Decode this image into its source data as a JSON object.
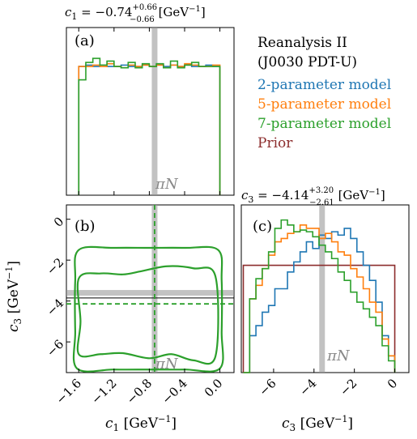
{
  "colors": {
    "2p": "#1f77b4",
    "5p": "#ff7f0e",
    "7p": "#2ca02c",
    "prior": "#8c2d2d",
    "band": "#9a9a9a"
  },
  "panels": {
    "a": "(a)",
    "b": "(b)",
    "c": "(c)"
  },
  "titles": {
    "c1_main": "c",
    "c1_sub": "1",
    "c1_value": " = −0.74",
    "c1_plus": "+0.66",
    "c1_minus": "−0.66",
    "c1_unit": " [GeV",
    "c1_unit_exp": "−1",
    "c1_unit_end": "]",
    "c3_main": "c",
    "c3_sub": "3",
    "c3_value": " = −4.14",
    "c3_plus": "+3.20",
    "c3_minus": "−2.61",
    "c3_unit": " [GeV",
    "c3_unit_exp": "−1",
    "c3_unit_end": "]"
  },
  "legend": {
    "header1": "Reanalysis II",
    "header2": "(J0030 PDT-U)",
    "items": [
      {
        "label": "2-parameter model",
        "color_key": "2p"
      },
      {
        "label": "5-parameter model",
        "color_key": "5p"
      },
      {
        "label": "7-parameter model",
        "color_key": "7p"
      },
      {
        "label": "Prior",
        "color_key": "prior"
      }
    ]
  },
  "annotations": {
    "piN": "πN"
  },
  "axes": {
    "xlabel_c1": "c",
    "xlabel_c1_sub": "1",
    "xlabel_c1_unit": " [GeV",
    "xlabel_c1_exp": "−1",
    "xlabel_c1_end": "]",
    "xlabel_c3": "c",
    "xlabel_c3_sub": "3",
    "xlabel_c3_unit": " [GeV",
    "xlabel_c3_exp": "−1",
    "xlabel_c3_end": "]",
    "ylabel_c3": "c",
    "ylabel_c3_sub": "3",
    "ylabel_c3_unit": " [GeV",
    "ylabel_c3_exp": "−1",
    "ylabel_c3_end": "]"
  },
  "chart_data": [
    {
      "id": "a",
      "type": "area",
      "xlim": [
        -1.74,
        0.16
      ],
      "piN_band": -0.74,
      "series": [
        {
          "key": "2p",
          "edges": [
            -1.6,
            0.0
          ],
          "values": [
            0.96,
            0.97,
            0.96,
            0.97,
            0.96,
            0.96,
            0.97,
            0.96,
            0.96,
            0.97,
            0.96,
            0.97,
            0.96,
            0.97,
            0.96,
            0.97,
            0.96,
            0.96,
            0.97,
            0.96
          ]
        },
        {
          "key": "5p",
          "edges": [
            -1.6,
            0.0
          ],
          "values": [
            0.96,
            0.96,
            0.97,
            0.96,
            0.98,
            0.96,
            0.95,
            0.97,
            0.96,
            0.97,
            0.96,
            0.97,
            0.95,
            0.97,
            0.96,
            0.98,
            0.97,
            0.96,
            0.96,
            0.97
          ]
        },
        {
          "key": "7p",
          "edges": [
            -1.6,
            0.0
          ],
          "values": [
            0.86,
            0.99,
            1.02,
            0.97,
            1.0,
            0.96,
            0.95,
            0.99,
            0.95,
            0.98,
            0.96,
            0.98,
            0.95,
            1.0,
            0.95,
            0.97,
            0.99,
            0.96,
            0.96,
            0.96
          ]
        }
      ]
    },
    {
      "id": "b",
      "type": "line",
      "xlim": [
        -1.74,
        0.16
      ],
      "ylim": [
        -7.5,
        0.7
      ],
      "xticks": [
        -1.6,
        -1.2,
        -0.8,
        -0.4,
        0.0
      ],
      "xtick_labels": [
        "−1.6",
        "−1.2",
        "−0.8",
        "−0.4",
        "0.0"
      ],
      "yticks": [
        0,
        -2,
        -4,
        -6
      ],
      "ytick_labels": [
        "0",
        "−2",
        "−4",
        "−6"
      ],
      "piN_c1": -0.74,
      "piN_c3": -3.6,
      "median_c1": -0.74,
      "median_c3": -4.14,
      "contours": [
        {
          "name": "outer",
          "points": [
            [
              -1.6,
              -1.5
            ],
            [
              -1.2,
              -1.4
            ],
            [
              -0.8,
              -1.4
            ],
            [
              -0.4,
              -1.4
            ],
            [
              -0.02,
              -1.5
            ],
            [
              0.02,
              -3.0
            ],
            [
              0.02,
              -5.5
            ],
            [
              0.0,
              -7.3
            ],
            [
              -0.4,
              -7.35
            ],
            [
              -0.8,
              -7.35
            ],
            [
              -1.2,
              -7.35
            ],
            [
              -1.62,
              -7.3
            ],
            [
              -1.64,
              -5.5
            ],
            [
              -1.64,
              -3.0
            ]
          ]
        },
        {
          "name": "inner",
          "points": [
            [
              -1.6,
              -2.9
            ],
            [
              -1.35,
              -2.65
            ],
            [
              -1.1,
              -2.7
            ],
            [
              -0.9,
              -2.55
            ],
            [
              -0.6,
              -2.3
            ],
            [
              -0.3,
              -2.4
            ],
            [
              -0.05,
              -2.8
            ],
            [
              -0.05,
              -6.7
            ],
            [
              -0.3,
              -6.9
            ],
            [
              -0.55,
              -6.6
            ],
            [
              -0.8,
              -6.8
            ],
            [
              -1.1,
              -6.55
            ],
            [
              -1.35,
              -6.6
            ],
            [
              -1.6,
              -6.6
            ],
            [
              -1.58,
              -5.0
            ]
          ]
        }
      ]
    },
    {
      "id": "c",
      "type": "area",
      "xlim": [
        -7.6,
        0.7
      ],
      "xticks": [
        -6,
        -4,
        -2,
        0
      ],
      "xtick_labels": [
        "−6",
        "−4",
        "−2",
        "0"
      ],
      "piN_band": -3.6,
      "prior": {
        "x0": -7.5,
        "x1": 0.0,
        "level": 0.64
      },
      "series": [
        {
          "key": "2p",
          "edges": [
            -7.5,
            0.0
          ],
          "values": [
            0.0,
            0.22,
            0.28,
            0.36,
            0.4,
            0.5,
            0.5,
            0.6,
            0.66,
            0.72,
            0.78,
            0.74,
            0.82,
            0.8,
            0.84,
            0.82,
            0.86,
            0.8,
            0.72,
            0.64,
            0.55,
            0.42,
            0.22,
            0.1
          ]
        },
        {
          "key": "5p",
          "edges": [
            -7.5,
            0.0
          ],
          "values": [
            0.0,
            0.44,
            0.52,
            0.62,
            0.7,
            0.78,
            0.8,
            0.83,
            0.84,
            0.88,
            0.86,
            0.86,
            0.8,
            0.83,
            0.78,
            0.72,
            0.7,
            0.62,
            0.57,
            0.5,
            0.42,
            0.36,
            0.2,
            0.1
          ]
        },
        {
          "key": "7p",
          "edges": [
            -7.5,
            0.0
          ],
          "values": [
            0.0,
            0.44,
            0.56,
            0.62,
            0.72,
            0.86,
            0.91,
            0.88,
            0.84,
            0.85,
            0.84,
            0.81,
            0.76,
            0.72,
            0.68,
            0.6,
            0.55,
            0.48,
            0.42,
            0.38,
            0.33,
            0.28,
            0.16,
            0.07
          ]
        }
      ]
    }
  ]
}
